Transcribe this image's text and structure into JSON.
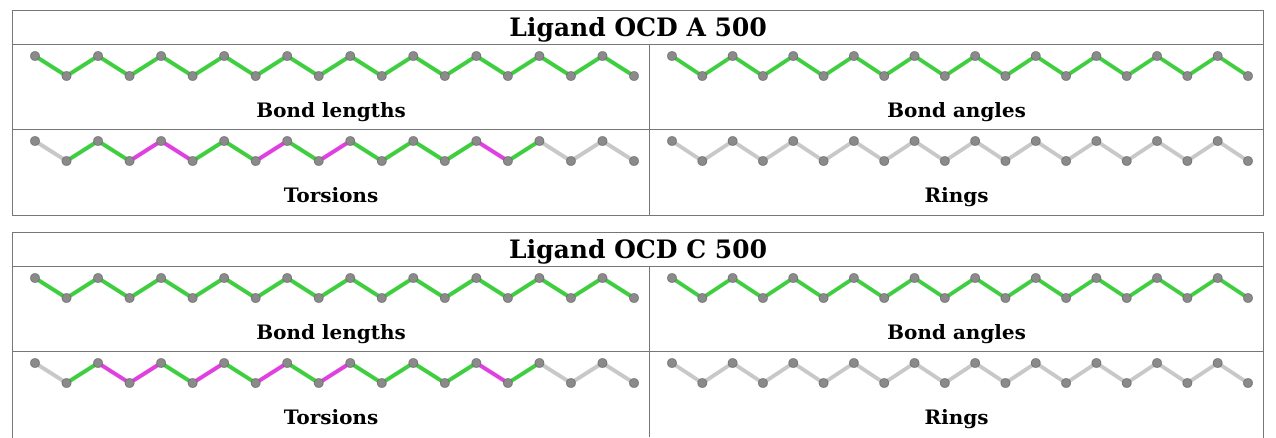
{
  "colors": {
    "good": "#3fce3f",
    "bad": "#e040e0",
    "neutral": "#c8c8c8",
    "atom": "#8a8a8a"
  },
  "panels": [
    {
      "title": "Ligand OCD A 500",
      "cells": [
        {
          "label": "Bond lengths",
          "bonds": [
            "g",
            "g",
            "g",
            "g",
            "g",
            "g",
            "g",
            "g",
            "g",
            "g",
            "g",
            "g",
            "g",
            "g",
            "g",
            "g",
            "g",
            "g",
            "g"
          ]
        },
        {
          "label": "Bond angles",
          "bonds": [
            "g",
            "g",
            "g",
            "g",
            "g",
            "g",
            "g",
            "g",
            "g",
            "g",
            "g",
            "g",
            "g",
            "g",
            "g",
            "g",
            "g",
            "g",
            "g"
          ]
        },
        {
          "label": "Torsions",
          "bonds": [
            "n",
            "g",
            "g",
            "m",
            "m",
            "g",
            "g",
            "m",
            "g",
            "m",
            "g",
            "g",
            "g",
            "g",
            "m",
            "g",
            "n",
            "n",
            "n"
          ]
        },
        {
          "label": "Rings",
          "bonds": [
            "n",
            "n",
            "n",
            "n",
            "n",
            "n",
            "n",
            "n",
            "n",
            "n",
            "n",
            "n",
            "n",
            "n",
            "n",
            "n",
            "n",
            "n",
            "n"
          ]
        }
      ]
    },
    {
      "title": "Ligand OCD C 500",
      "cells": [
        {
          "label": "Bond lengths",
          "bonds": [
            "g",
            "g",
            "g",
            "g",
            "g",
            "g",
            "g",
            "g",
            "g",
            "g",
            "g",
            "g",
            "g",
            "g",
            "g",
            "g",
            "g",
            "g",
            "g"
          ]
        },
        {
          "label": "Bond angles",
          "bonds": [
            "g",
            "g",
            "g",
            "g",
            "g",
            "g",
            "g",
            "g",
            "g",
            "g",
            "g",
            "g",
            "g",
            "g",
            "g",
            "g",
            "g",
            "g",
            "g"
          ]
        },
        {
          "label": "Torsions",
          "bonds": [
            "n",
            "g",
            "m",
            "m",
            "g",
            "m",
            "g",
            "m",
            "g",
            "m",
            "g",
            "g",
            "g",
            "g",
            "m",
            "g",
            "n",
            "n",
            "n"
          ]
        },
        {
          "label": "Rings",
          "bonds": [
            "n",
            "n",
            "n",
            "n",
            "n",
            "n",
            "n",
            "n",
            "n",
            "n",
            "n",
            "n",
            "n",
            "n",
            "n",
            "n",
            "n",
            "n",
            "n"
          ]
        }
      ]
    }
  ]
}
